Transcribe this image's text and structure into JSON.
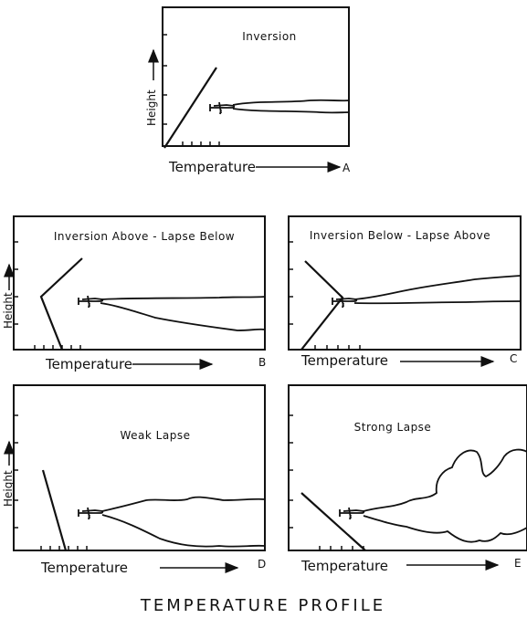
{
  "panels": [
    {
      "title": "Inversion",
      "y_label": "Height",
      "x_label": "Temperature",
      "letter": "A"
    },
    {
      "title": "Inversion Above - Lapse Below",
      "y_label": "Height",
      "x_label": "Temperature",
      "letter": "B"
    },
    {
      "title": "Inversion Below - Lapse Above",
      "x_label": "Temperature",
      "letter": "C"
    },
    {
      "title": "Weak Lapse",
      "y_label": "Height",
      "x_label": "Temperature",
      "letter": "D"
    },
    {
      "title": "Strong Lapse",
      "x_label": "Temperature",
      "letter": "E"
    }
  ],
  "caption": "TEMPERATURE PROFILE"
}
